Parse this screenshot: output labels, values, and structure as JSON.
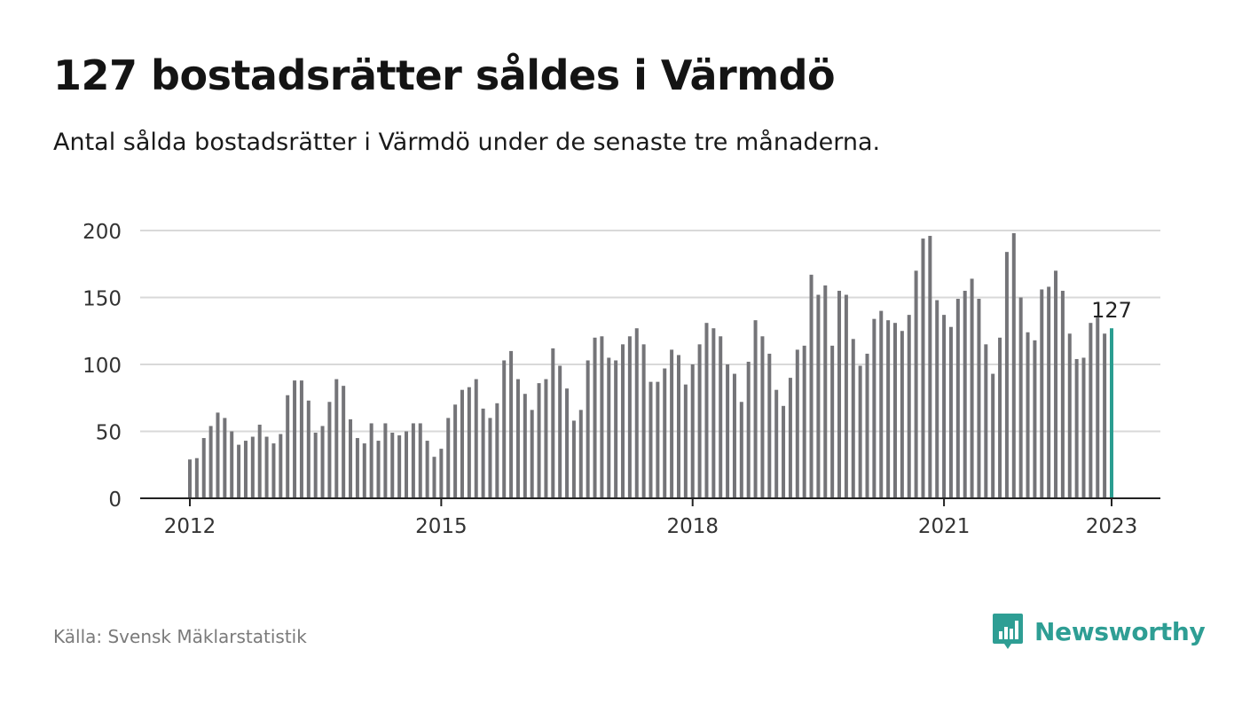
{
  "header": {
    "title": "127 bostadsrätter såldes i Värmdö",
    "subtitle": "Antal sålda bostadsrätter i Värmdö under de senaste tre månaderna."
  },
  "footer": {
    "source": "Källa: Svensk Mäklarstatistik",
    "brand": "Newsworthy",
    "brand_icon": "bar-chart-speech-bubble-icon"
  },
  "colors": {
    "bar": "#747478",
    "highlight": "#2a9d90",
    "grid": "#d9d9d9",
    "axis": "#222222",
    "brand": "#2e9e94"
  },
  "chart_data": {
    "type": "bar",
    "title": "127 bostadsrätter såldes i Värmdö",
    "subtitle": "Antal sålda bostadsrätter i Värmdö under de senaste tre månaderna.",
    "xlabel": "",
    "ylabel": "",
    "ylim": [
      0,
      200
    ],
    "y_ticks": [
      0,
      50,
      100,
      150,
      200
    ],
    "x_tick_labels": [
      "2012",
      "2015",
      "2018",
      "2021",
      "2023"
    ],
    "x_range": [
      "2012-01",
      "2023-01"
    ],
    "grid": true,
    "legend": "none",
    "highlight_label": "127",
    "categories": [
      "2012-01",
      "2012-02",
      "2012-03",
      "2012-04",
      "2012-05",
      "2012-06",
      "2012-07",
      "2012-08",
      "2012-09",
      "2012-10",
      "2012-11",
      "2012-12",
      "2013-01",
      "2013-02",
      "2013-03",
      "2013-04",
      "2013-05",
      "2013-06",
      "2013-07",
      "2013-08",
      "2013-09",
      "2013-10",
      "2013-11",
      "2013-12",
      "2014-01",
      "2014-02",
      "2014-03",
      "2014-04",
      "2014-05",
      "2014-06",
      "2014-07",
      "2014-08",
      "2014-09",
      "2014-10",
      "2014-11",
      "2014-12",
      "2015-01",
      "2015-02",
      "2015-03",
      "2015-04",
      "2015-05",
      "2015-06",
      "2015-07",
      "2015-08",
      "2015-09",
      "2015-10",
      "2015-11",
      "2015-12",
      "2016-01",
      "2016-02",
      "2016-03",
      "2016-04",
      "2016-05",
      "2016-06",
      "2016-07",
      "2016-08",
      "2016-09",
      "2016-10",
      "2016-11",
      "2016-12",
      "2017-01",
      "2017-02",
      "2017-03",
      "2017-04",
      "2017-05",
      "2017-06",
      "2017-07",
      "2017-08",
      "2017-09",
      "2017-10",
      "2017-11",
      "2017-12",
      "2018-01",
      "2018-02",
      "2018-03",
      "2018-04",
      "2018-05",
      "2018-06",
      "2018-07",
      "2018-08",
      "2018-09",
      "2018-10",
      "2018-11",
      "2018-12",
      "2019-01",
      "2019-02",
      "2019-03",
      "2019-04",
      "2019-05",
      "2019-06",
      "2019-07",
      "2019-08",
      "2019-09",
      "2019-10",
      "2019-11",
      "2019-12",
      "2020-01",
      "2020-02",
      "2020-03",
      "2020-04",
      "2020-05",
      "2020-06",
      "2020-07",
      "2020-08",
      "2020-09",
      "2020-10",
      "2020-11",
      "2020-12",
      "2021-01",
      "2021-02",
      "2021-03",
      "2021-04",
      "2021-05",
      "2021-06",
      "2021-07",
      "2021-08",
      "2021-09",
      "2021-10",
      "2021-11",
      "2021-12",
      "2022-01",
      "2022-02",
      "2022-03",
      "2022-04",
      "2022-05",
      "2022-06",
      "2022-07",
      "2022-08",
      "2022-09",
      "2022-10",
      "2022-11",
      "2022-12",
      "2023-01"
    ],
    "values": [
      29,
      30,
      45,
      54,
      64,
      60,
      50,
      40,
      43,
      46,
      55,
      46,
      41,
      48,
      77,
      88,
      88,
      73,
      49,
      54,
      72,
      89,
      84,
      59,
      45,
      41,
      56,
      43,
      56,
      49,
      47,
      50,
      56,
      56,
      43,
      31,
      37,
      60,
      70,
      81,
      83,
      89,
      67,
      60,
      71,
      103,
      110,
      89,
      78,
      66,
      86,
      89,
      112,
      99,
      82,
      58,
      66,
      103,
      120,
      121,
      105,
      103,
      115,
      121,
      127,
      115,
      87,
      87,
      97,
      111,
      107,
      85,
      100,
      115,
      131,
      127,
      121,
      100,
      93,
      72,
      102,
      133,
      121,
      108,
      81,
      69,
      90,
      111,
      114,
      167,
      152,
      159,
      114,
      155,
      152,
      119,
      99,
      108,
      134,
      140,
      133,
      131,
      125,
      137,
      170,
      194,
      196,
      148,
      137,
      128,
      149,
      155,
      164,
      149,
      115,
      93,
      120,
      184,
      198,
      150,
      124,
      118,
      156,
      158,
      170,
      155,
      123,
      104,
      105,
      131,
      135,
      123,
      127
    ]
  }
}
